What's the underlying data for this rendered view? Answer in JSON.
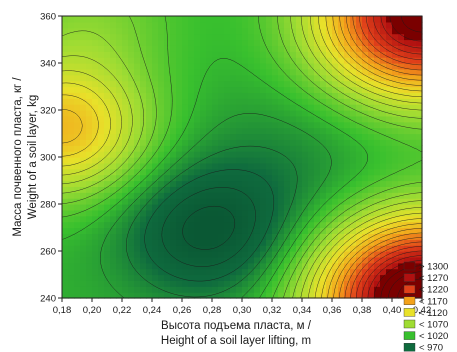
{
  "chart_data": {
    "type": "heatmap",
    "subtype": "filled-contour",
    "x_label_lines": [
      "Высота подъема пласта, м /",
      "Height of a soil layer lifting, m"
    ],
    "y_label_lines": [
      "Масса почвенного пласта, кг /",
      "Weight of a soil layer, kg"
    ],
    "xlim": [
      0.18,
      0.42
    ],
    "ylim": [
      240,
      360
    ],
    "x_ticks": [
      "0,18",
      "0,20",
      "0,22",
      "0,24",
      "0,26",
      "0,28",
      "0,30",
      "0,32",
      "0,34",
      "0,36",
      "0,38",
      "0,40",
      "0,42"
    ],
    "x_tick_values": [
      0.18,
      0.2,
      0.22,
      0.24,
      0.26,
      0.28,
      0.3,
      0.32,
      0.34,
      0.36,
      0.38,
      0.4,
      0.42
    ],
    "y_ticks": [
      "240",
      "260",
      "280",
      "300",
      "320",
      "340",
      "360"
    ],
    "y_tick_values": [
      240,
      260,
      280,
      300,
      320,
      340,
      360
    ],
    "grid": false,
    "legend_position": "bottom-right",
    "legend": [
      {
        "label": "> 1300",
        "color": "#7a0000"
      },
      {
        "label": "< 1270",
        "color": "#b01010"
      },
      {
        "label": "< 1220",
        "color": "#e0401a"
      },
      {
        "label": "< 1170",
        "color": "#f3a21b"
      },
      {
        "label": "< 1120",
        "color": "#e8e12a"
      },
      {
        "label": "< 1070",
        "color": "#9fdc33"
      },
      {
        "label": "< 1020",
        "color": "#38c02e"
      },
      {
        "label": "< 970",
        "color": "#0f6b3e"
      }
    ],
    "surface": {
      "base": 1010,
      "features": [
        {
          "kind": "minimum",
          "x": 0.275,
          "y": 268,
          "amplitude": -75
        },
        {
          "kind": "minimum",
          "x": 0.33,
          "y": 292,
          "amplitude": -25
        },
        {
          "kind": "maximum",
          "x": 0.18,
          "y": 312,
          "amplitude": 140
        },
        {
          "kind": "maximum",
          "x": 0.42,
          "y": 240,
          "amplitude": 330
        },
        {
          "kind": "maximum",
          "x": 0.42,
          "y": 360,
          "amplitude": 290
        },
        {
          "kind": "maximum",
          "x": 0.2,
          "y": 360,
          "amplitude": 40
        }
      ]
    }
  }
}
